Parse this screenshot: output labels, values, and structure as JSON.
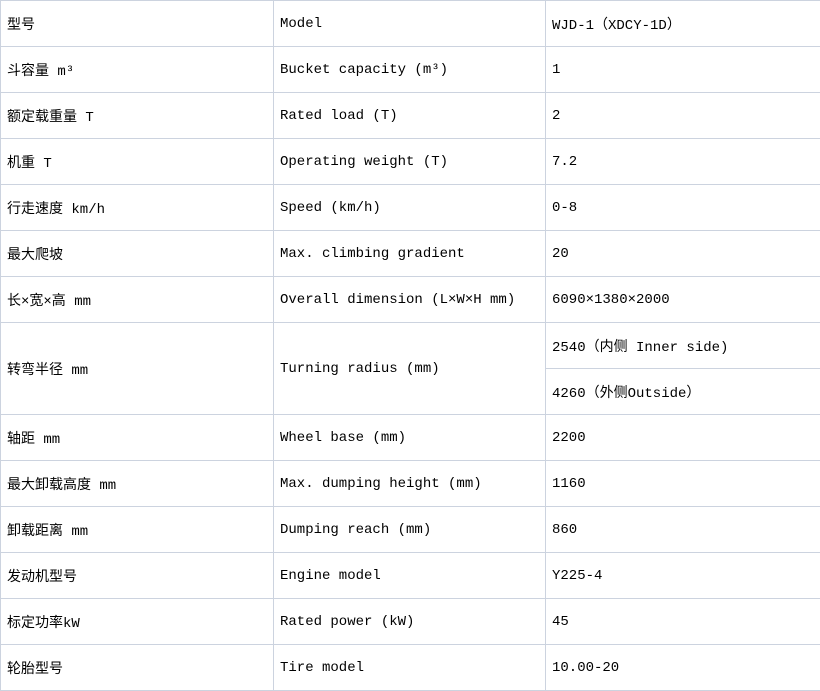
{
  "table": {
    "border_color": "#ccd3df",
    "text_color": "#000000",
    "background_color": "#ffffff",
    "columns": [
      "chinese_label",
      "english_label",
      "value"
    ],
    "rows": [
      {
        "cn": "型号",
        "en": "Model",
        "value": "WJD-1（XDCY-1D）"
      },
      {
        "cn": "斗容量 m³",
        "en": "Bucket capacity (m³)",
        "value": "1"
      },
      {
        "cn": "额定载重量 T",
        "en": "Rated load (T)",
        "value": "2"
      },
      {
        "cn": "机重 T",
        "en": "Operating weight (T)",
        "value": "7.2"
      },
      {
        "cn": "行走速度 km/h",
        "en": "Speed (km/h)",
        "value": "0-8"
      },
      {
        "cn": "最大爬坡",
        "en": "Max. climbing gradient",
        "value": "20"
      },
      {
        "cn": "长×宽×高 mm",
        "en": "Overall dimension (L×W×H mm)",
        "value": "6090×1380×2000"
      },
      {
        "cn": "转弯半径 mm",
        "en": "Turning radius (mm)",
        "values": [
          "2540（内侧 Inner side)",
          "4260（外侧Outside）"
        ]
      },
      {
        "cn": "轴距 mm",
        "en": "Wheel base (mm)",
        "value": "2200"
      },
      {
        "cn": "最大卸载高度 mm",
        "en": "Max. dumping height (mm)",
        "value": "1160"
      },
      {
        "cn": "卸载距离 mm",
        "en": "Dumping reach (mm)",
        "value": "860"
      },
      {
        "cn": "发动机型号",
        "en": "Engine model",
        "value": "Y225-4"
      },
      {
        "cn": "标定功率kW",
        "en": "Rated power (kW)",
        "value": "45"
      },
      {
        "cn": "轮胎型号",
        "en": "Tire model",
        "value": "10.00-20"
      }
    ]
  }
}
